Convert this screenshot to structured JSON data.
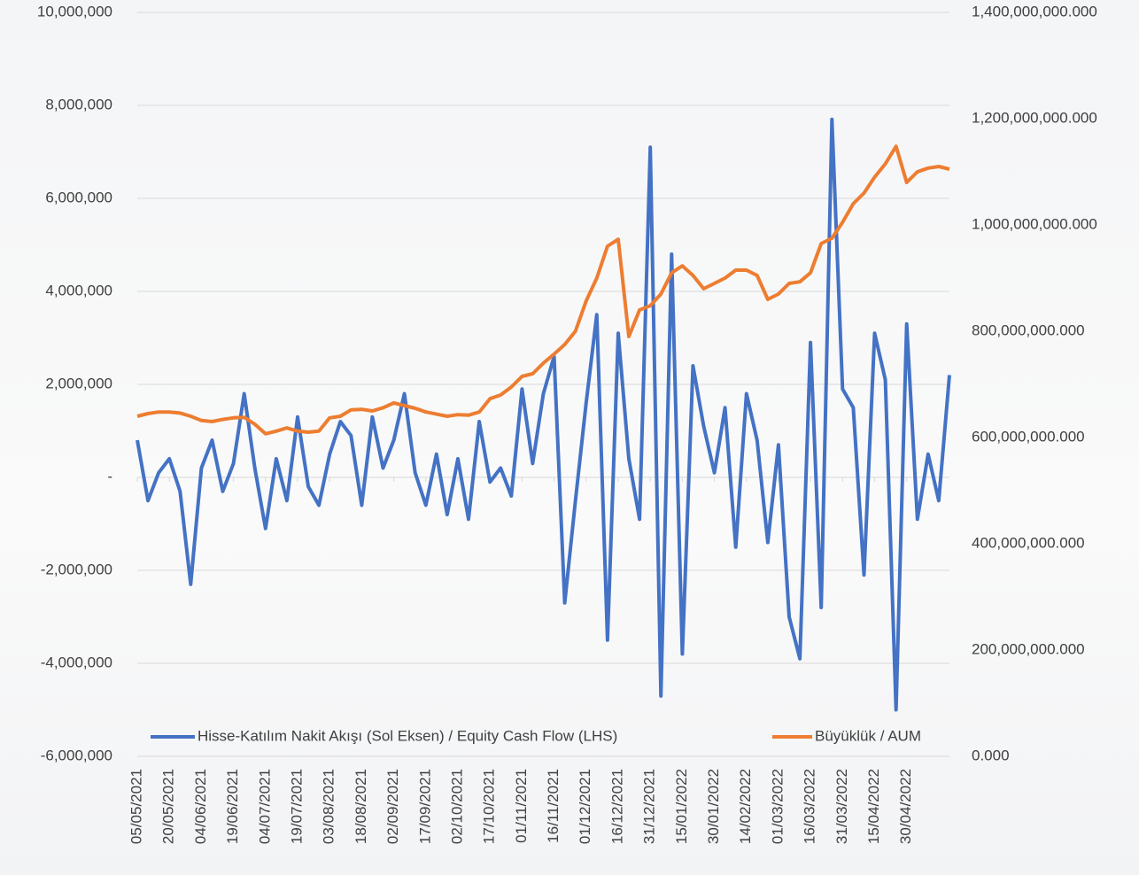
{
  "chart_data": {
    "type": "line",
    "categories": [
      "05/05/2021",
      null,
      null,
      "20/05/2021",
      null,
      null,
      "04/06/2021",
      null,
      null,
      "19/06/2021",
      null,
      null,
      "04/07/2021",
      null,
      null,
      "19/07/2021",
      null,
      null,
      "03/08/2021",
      null,
      null,
      "18/08/2021",
      null,
      null,
      "02/09/2021",
      null,
      null,
      "17/09/2021",
      null,
      null,
      "02/10/2021",
      null,
      null,
      "17/10/2021",
      null,
      null,
      "01/11/2021",
      null,
      null,
      "16/11/2021",
      null,
      null,
      "01/12/2021",
      null,
      null,
      "16/12/2021",
      null,
      null,
      "31/12/2021",
      null,
      null,
      "15/01/2022",
      null,
      null,
      "30/01/2022",
      null,
      null,
      "14/02/2022",
      null,
      null,
      "01/03/2022",
      null,
      null,
      "16/03/2022",
      null,
      null,
      "31/03/2022",
      null,
      null,
      "15/04/2022",
      null,
      null,
      "30/04/2022",
      null,
      null,
      null,
      null
    ],
    "series": [
      {
        "name": "Hisse-Katılım Nakit Akışı (Sol Eksen) / Equity Cash Flow (LHS)",
        "color": "#4472c4",
        "axis": "y",
        "values": [
          800000,
          -500000,
          100000,
          400000,
          -300000,
          -2300000,
          200000,
          800000,
          -300000,
          300000,
          1800000,
          200000,
          -1100000,
          400000,
          -500000,
          1300000,
          -200000,
          -600000,
          500000,
          1200000,
          900000,
          -600000,
          1300000,
          200000,
          800000,
          1800000,
          100000,
          -600000,
          500000,
          -800000,
          400000,
          -900000,
          1200000,
          -100000,
          200000,
          -400000,
          1900000,
          300000,
          1800000,
          2600000,
          -2700000,
          -500000,
          1600000,
          3500000,
          -3500000,
          3100000,
          400000,
          -900000,
          7100000,
          -4700000,
          4800000,
          -3800000,
          2400000,
          1100000,
          100000,
          1500000,
          -1500000,
          1800000,
          800000,
          -1400000,
          700000,
          -3000000,
          -3900000,
          2900000,
          -2800000,
          7700000,
          1900000,
          1500000,
          -2100000,
          3100000,
          2100000,
          -5000000,
          3300000,
          -900000,
          500000,
          -500000,
          2200000
        ]
      },
      {
        "name": "Büyüklük / AUM",
        "color": "#ed7d31",
        "axis": "y2",
        "values": [
          640000000,
          645000000,
          648000000,
          648000000,
          646000000,
          640000000,
          632000000,
          630000000,
          634000000,
          637000000,
          638000000,
          625000000,
          607000000,
          612000000,
          618000000,
          612000000,
          610000000,
          612000000,
          637000000,
          640000000,
          652000000,
          653000000,
          650000000,
          656000000,
          665000000,
          660000000,
          655000000,
          648000000,
          644000000,
          640000000,
          643000000,
          642000000,
          648000000,
          673000000,
          680000000,
          695000000,
          715000000,
          720000000,
          740000000,
          757000000,
          775000000,
          800000000,
          857000000,
          900000000,
          960000000,
          973000000,
          790000000,
          840000000,
          848000000,
          870000000,
          910000000,
          923000000,
          905000000,
          880000000,
          890000000,
          900000000,
          915000000,
          915000000,
          905000000,
          860000000,
          870000000,
          890000000,
          893000000,
          910000000,
          965000000,
          975000000,
          1005000000,
          1040000000,
          1060000000,
          1090000000,
          1115000000,
          1148000000,
          1080000000,
          1100000000,
          1107000000,
          1110000000,
          1105000000
        ]
      }
    ],
    "ylim": [
      -6000000,
      10000000
    ],
    "yticks": [
      {
        "value": -6000000,
        "label": "-6,000,000"
      },
      {
        "value": -4000000,
        "label": "-4,000,000"
      },
      {
        "value": -2000000,
        "label": "-2,000,000"
      },
      {
        "value": 0,
        "label": "-"
      },
      {
        "value": 2000000,
        "label": "2,000,000"
      },
      {
        "value": 4000000,
        "label": "4,000,000"
      },
      {
        "value": 6000000,
        "label": "6,000,000"
      },
      {
        "value": 8000000,
        "label": "8,000,000"
      },
      {
        "value": 10000000,
        "label": "10,000,000"
      }
    ],
    "y2lim": [
      0,
      1400000000
    ],
    "y2ticks": [
      {
        "value": 0,
        "label": "0.000"
      },
      {
        "value": 200000000,
        "label": "200,000,000.000"
      },
      {
        "value": 400000000,
        "label": "400,000,000.000"
      },
      {
        "value": 600000000,
        "label": "600,000,000.000"
      },
      {
        "value": 800000000,
        "label": "800,000,000.000"
      },
      {
        "value": 1000000000,
        "label": "1,000,000,000.000"
      },
      {
        "value": 1200000000,
        "label": "1,200,000,000.000"
      },
      {
        "value": 1400000000,
        "label": "1,400,000,000.000"
      }
    ],
    "grid": true,
    "legend": "bottom"
  }
}
